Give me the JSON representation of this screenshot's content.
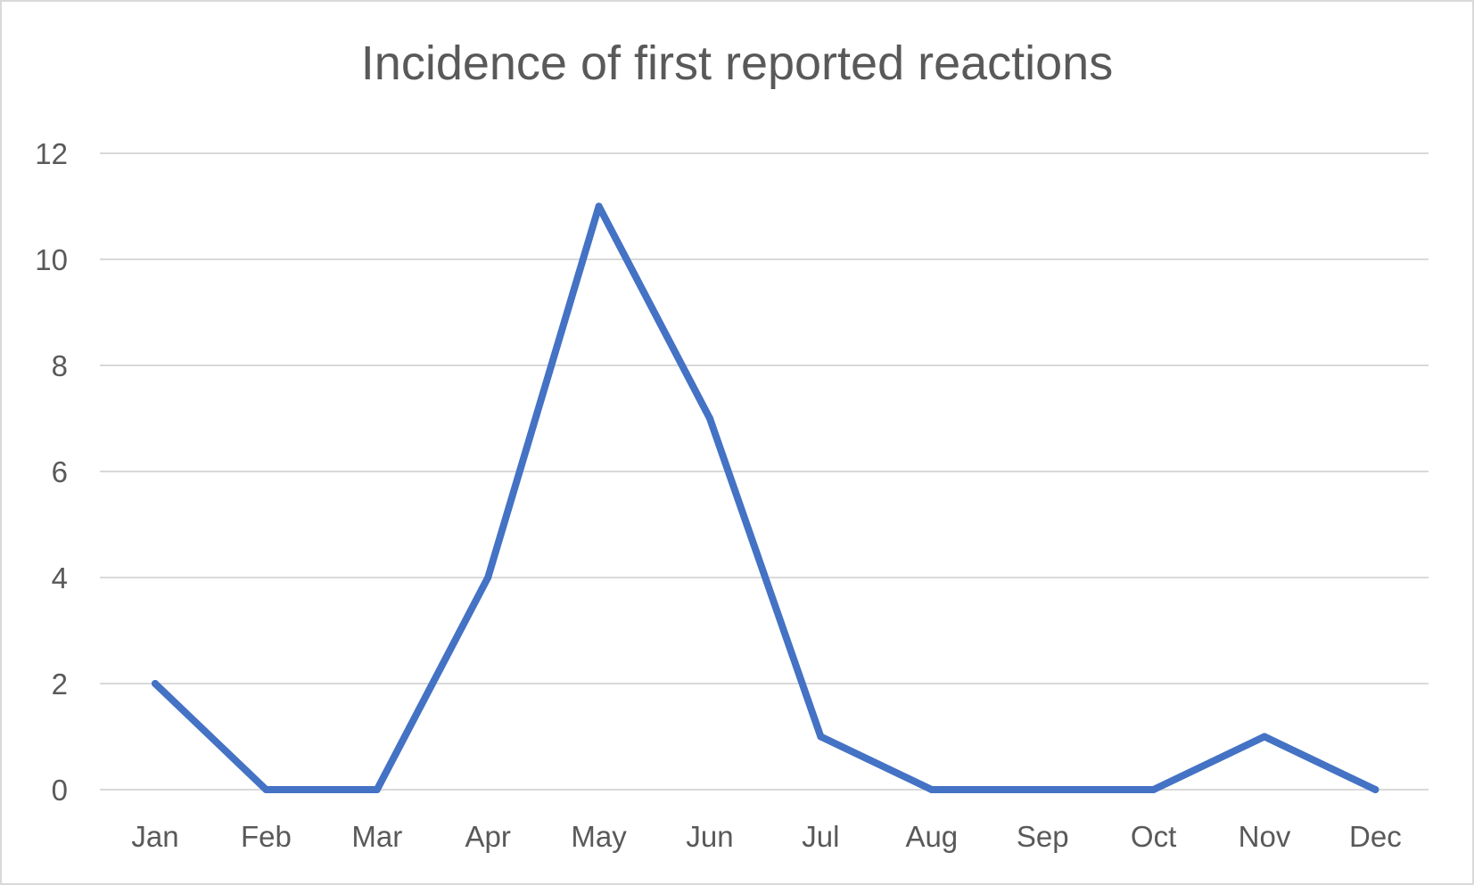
{
  "chart_data": {
    "type": "line",
    "title": "Incidence of first reported reactions",
    "xlabel": "",
    "ylabel": "",
    "categories": [
      "Jan",
      "Feb",
      "Mar",
      "Apr",
      "May",
      "Jun",
      "Jul",
      "Aug",
      "Sep",
      "Oct",
      "Nov",
      "Dec"
    ],
    "series": [
      {
        "values": [
          2,
          0,
          0,
          4,
          11,
          7,
          1,
          0,
          0,
          0,
          1,
          0
        ],
        "color": "#4472c4"
      }
    ],
    "ylim": [
      0,
      12
    ],
    "yticks": [
      0,
      2,
      4,
      6,
      8,
      10,
      12
    ],
    "grid": true,
    "legend": "none"
  }
}
